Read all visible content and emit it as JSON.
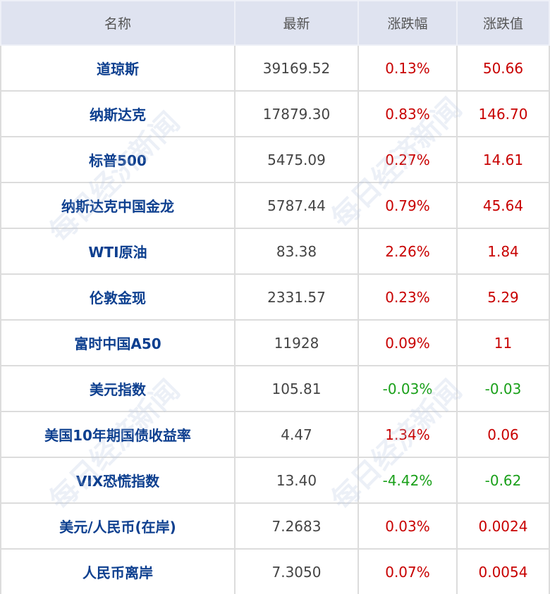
{
  "headers": [
    "名称",
    "最新",
    "涨跌幅",
    "涨跌值"
  ],
  "rows": [
    {
      "name": "道琼斯",
      "latest": "39169.52",
      "pct": "0.13%",
      "chg": "50.66",
      "dir": "up"
    },
    {
      "name": "纳斯达克",
      "latest": "17879.30",
      "pct": "0.83%",
      "chg": "146.70",
      "dir": "up"
    },
    {
      "name": "标普500",
      "latest": "5475.09",
      "pct": "0.27%",
      "chg": "14.61",
      "dir": "up"
    },
    {
      "name": "纳斯达克中国金龙",
      "latest": "5787.44",
      "pct": "0.79%",
      "chg": "45.64",
      "dir": "up"
    },
    {
      "name": "WTI原油",
      "latest": "83.38",
      "pct": "2.26%",
      "chg": "1.84",
      "dir": "up"
    },
    {
      "name": "伦敦金现",
      "latest": "2331.57",
      "pct": "0.23%",
      "chg": "5.29",
      "dir": "up"
    },
    {
      "name": "富时中国A50",
      "latest": "11928",
      "pct": "0.09%",
      "chg": "11",
      "dir": "up"
    },
    {
      "name": "美元指数",
      "latest": "105.81",
      "pct": "-0.03%",
      "chg": "-0.03",
      "dir": "down"
    },
    {
      "name": "美国10年期国债收益率",
      "latest": "4.47",
      "pct": "1.34%",
      "chg": "0.06",
      "dir": "up"
    },
    {
      "name": "VIX恐慌指数",
      "latest": "13.40",
      "pct": "-4.42%",
      "chg": "-0.62",
      "dir": "down"
    },
    {
      "name": "美元/人民币(在岸)",
      "latest": "7.2683",
      "pct": "0.03%",
      "chg": "0.0024",
      "dir": "up"
    },
    {
      "name": "人民币离岸",
      "latest": "7.3050",
      "pct": "0.07%",
      "chg": "0.0054",
      "dir": "up"
    }
  ],
  "watermark": "每日经济新闻",
  "colors": {
    "up": "#c80000",
    "down": "#1aa01a",
    "name": "#0d3f8f",
    "header_bg": "#dfe3f0"
  }
}
